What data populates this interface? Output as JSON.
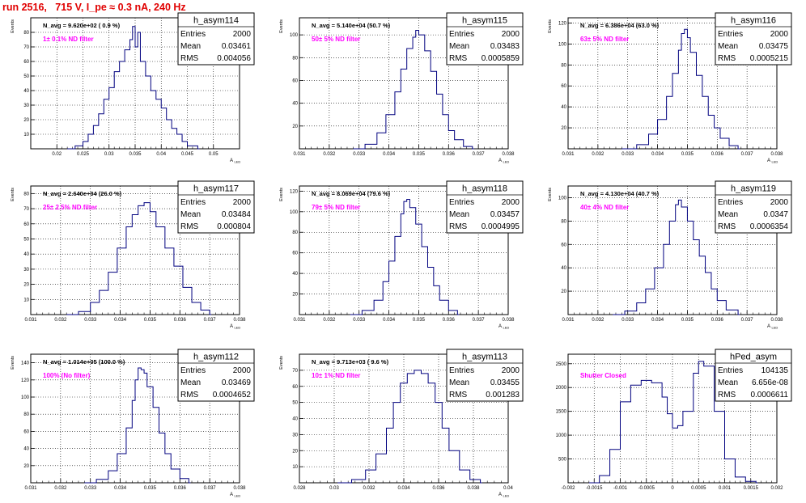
{
  "page_title": "run 2516,   715 V, I_pe ≈ 0.3 nA, 240 Hz",
  "colors": {
    "histogram_line": "#00007f",
    "filter_label": "#ff00ff",
    "title": "#e00000"
  },
  "chart_data": [
    {
      "type": "histogram",
      "name": "h_asym114",
      "stats": {
        "Entries": "2000",
        "Mean": "0.03461",
        "RMS": "0.004056"
      },
      "navg": "N_avg = 9.620e+02 ( 0.9 %)",
      "filter": "1± 0.1% ND filter",
      "ylabel": "Events",
      "xlabel": "A",
      "x_sub": "LED",
      "xlim": [
        0.015,
        0.055
      ],
      "ylim": [
        0,
        90
      ],
      "xticks": [
        0.02,
        0.025,
        0.03,
        0.035,
        0.04,
        0.045,
        0.05
      ],
      "xtick_labels": [
        "0.02",
        "0.025",
        "0.03",
        "0.035",
        "0.04",
        "0.045",
        "0.05"
      ],
      "yticks": [
        10,
        20,
        30,
        40,
        50,
        60,
        70,
        80
      ],
      "ytick_labels": [
        "10",
        "20",
        "30",
        "40",
        "50",
        "60",
        "70",
        "80"
      ],
      "x": [
        0.022,
        0.0235,
        0.025,
        0.026,
        0.027,
        0.028,
        0.029,
        0.03,
        0.031,
        0.032,
        0.033,
        0.034,
        0.0345,
        0.035,
        0.0355,
        0.036,
        0.037,
        0.038,
        0.039,
        0.04,
        0.041,
        0.042,
        0.043,
        0.044,
        0.045,
        0.047
      ],
      "y": [
        0,
        2,
        5,
        10,
        16,
        24,
        34,
        42,
        53,
        60,
        68,
        75,
        84,
        70,
        80,
        60,
        50,
        40,
        34,
        28,
        20,
        14,
        10,
        5,
        2,
        0
      ]
    },
    {
      "type": "histogram",
      "name": "h_asym115",
      "stats": {
        "Entries": "2000",
        "Mean": "0.03483",
        "RMS": "0.0005859"
      },
      "navg": "N_avg = 5.140e+04 (50.7 %)",
      "filter": "50± 5% ND filter",
      "ylabel": "Events",
      "xlabel": "A",
      "x_sub": "LED",
      "xlim": [
        0.031,
        0.038
      ],
      "ylim": [
        0,
        115
      ],
      "xticks": [
        0.031,
        0.032,
        0.033,
        0.034,
        0.035,
        0.036,
        0.037,
        0.038
      ],
      "xtick_labels": [
        "0.031",
        "0.032",
        "0.033",
        "0.034",
        "0.035",
        "0.036",
        "0.037",
        "0.038"
      ],
      "yticks": [
        20,
        40,
        60,
        80,
        100
      ],
      "ytick_labels": [
        "20",
        "40",
        "60",
        "80",
        "100"
      ],
      "x": [
        0.0328,
        0.0332,
        0.0336,
        0.0339,
        0.0342,
        0.0344,
        0.0346,
        0.0348,
        0.0349,
        0.035,
        0.0352,
        0.0354,
        0.0356,
        0.0358,
        0.036,
        0.0362,
        0.0365,
        0.0368
      ],
      "y": [
        0,
        4,
        14,
        30,
        50,
        70,
        88,
        98,
        104,
        100,
        86,
        68,
        48,
        30,
        16,
        8,
        2,
        0
      ]
    },
    {
      "type": "histogram",
      "name": "h_asym116",
      "stats": {
        "Entries": "2000",
        "Mean": "0.03475",
        "RMS": "0.0005215"
      },
      "navg": "N_avg = 6.386e+04 (63.0 %)",
      "filter": "63± 5% ND filter",
      "ylabel": "Events",
      "xlabel": "A",
      "x_sub": "LED",
      "xlim": [
        0.031,
        0.038
      ],
      "ylim": [
        0,
        125
      ],
      "xticks": [
        0.031,
        0.032,
        0.033,
        0.034,
        0.035,
        0.036,
        0.037,
        0.038
      ],
      "xtick_labels": [
        "0.031",
        "0.032",
        "0.033",
        "0.034",
        "0.035",
        "0.036",
        "0.037",
        "0.038"
      ],
      "yticks": [
        20,
        40,
        60,
        80,
        100,
        120
      ],
      "ytick_labels": [
        "20",
        "40",
        "60",
        "80",
        "100",
        "120"
      ],
      "x": [
        0.0328,
        0.0333,
        0.0337,
        0.034,
        0.0343,
        0.0345,
        0.0347,
        0.0348,
        0.0349,
        0.035,
        0.0351,
        0.0353,
        0.0355,
        0.0357,
        0.0359,
        0.0361,
        0.0364,
        0.0367
      ],
      "y": [
        0,
        4,
        14,
        28,
        50,
        72,
        94,
        110,
        114,
        106,
        92,
        70,
        50,
        32,
        20,
        10,
        3,
        0
      ]
    },
    {
      "type": "histogram",
      "name": "h_asym117",
      "stats": {
        "Entries": "2000",
        "Mean": "0.03484",
        "RMS": "0.000804"
      },
      "navg": "N_avg = 2.640e+04 (26.0 %)",
      "filter": "25± 2.5% ND filter",
      "ylabel": "Events",
      "xlabel": "A",
      "x_sub": "LED",
      "xlim": [
        0.031,
        0.038
      ],
      "ylim": [
        0,
        85
      ],
      "xticks": [
        0.031,
        0.032,
        0.033,
        0.034,
        0.035,
        0.036,
        0.037,
        0.038
      ],
      "xtick_labels": [
        "0.031",
        "0.032",
        "0.033",
        "0.034",
        "0.035",
        "0.036",
        "0.037",
        "0.038"
      ],
      "yticks": [
        10,
        20,
        30,
        40,
        50,
        60,
        70,
        80
      ],
      "ytick_labels": [
        "10",
        "20",
        "30",
        "40",
        "50",
        "60",
        "70",
        "80"
      ],
      "x": [
        0.0322,
        0.0326,
        0.033,
        0.0333,
        0.0336,
        0.0339,
        0.0342,
        0.0344,
        0.0346,
        0.0348,
        0.035,
        0.0352,
        0.0355,
        0.0358,
        0.0361,
        0.0364,
        0.0367,
        0.037
      ],
      "y": [
        0,
        2,
        8,
        16,
        28,
        44,
        58,
        66,
        72,
        74,
        68,
        58,
        44,
        32,
        18,
        8,
        3,
        0
      ]
    },
    {
      "type": "histogram",
      "name": "h_asym118",
      "stats": {
        "Entries": "2000",
        "Mean": "0.03457",
        "RMS": "0.0004995"
      },
      "navg": "N_avg = 8.069e+04 (79.6 %)",
      "filter": "79± 5% ND filter",
      "ylabel": "Events",
      "xlabel": "A",
      "x_sub": "LED",
      "xlim": [
        0.031,
        0.038
      ],
      "ylim": [
        0,
        125
      ],
      "xticks": [
        0.031,
        0.032,
        0.033,
        0.034,
        0.035,
        0.036,
        0.037,
        0.038
      ],
      "xtick_labels": [
        "0.031",
        "0.032",
        "0.033",
        "0.034",
        "0.035",
        "0.036",
        "0.037",
        "0.038"
      ],
      "yticks": [
        20,
        40,
        60,
        80,
        100,
        120
      ],
      "ytick_labels": [
        "20",
        "40",
        "60",
        "80",
        "100",
        "120"
      ],
      "x": [
        0.0327,
        0.0331,
        0.0335,
        0.0338,
        0.034,
        0.0342,
        0.0344,
        0.0345,
        0.0346,
        0.0347,
        0.0349,
        0.0351,
        0.0353,
        0.0355,
        0.0357,
        0.036,
        0.0363
      ],
      "y": [
        0,
        4,
        14,
        32,
        52,
        76,
        98,
        110,
        112,
        104,
        88,
        66,
        46,
        28,
        14,
        4,
        0
      ]
    },
    {
      "type": "histogram",
      "name": "h_asym119",
      "stats": {
        "Entries": "2000",
        "Mean": "0.0347",
        "RMS": "0.0006354"
      },
      "navg": "N_avg = 4.130e+04 (40.7 %)",
      "filter": "40± 4% ND filter",
      "ylabel": "Events",
      "xlabel": "A",
      "x_sub": "LED",
      "xlim": [
        0.031,
        0.038
      ],
      "ylim": [
        0,
        110
      ],
      "xticks": [
        0.031,
        0.032,
        0.033,
        0.034,
        0.035,
        0.036,
        0.037,
        0.038
      ],
      "xtick_labels": [
        "0.031",
        "0.032",
        "0.033",
        "0.034",
        "0.035",
        "0.036",
        "0.037",
        "0.038"
      ],
      "yticks": [
        20,
        40,
        60,
        80,
        100
      ],
      "ytick_labels": [
        "20",
        "40",
        "60",
        "80",
        "100"
      ],
      "x": [
        0.0325,
        0.0329,
        0.0333,
        0.0336,
        0.0339,
        0.0342,
        0.0344,
        0.0346,
        0.0347,
        0.0348,
        0.035,
        0.0352,
        0.0354,
        0.0356,
        0.0358,
        0.036,
        0.0363,
        0.0367
      ],
      "y": [
        0,
        3,
        10,
        22,
        40,
        60,
        80,
        94,
        98,
        92,
        80,
        64,
        50,
        36,
        22,
        12,
        4,
        0
      ]
    },
    {
      "type": "histogram",
      "name": "h_asym112",
      "stats": {
        "Entries": "2000",
        "Mean": "0.03469",
        "RMS": "0.0004652"
      },
      "navg": "N_avg = 1.014e+05 (100.0 %)",
      "filter": "100% (No filter)",
      "ylabel": "Events",
      "xlabel": "A",
      "x_sub": "LED",
      "xlim": [
        0.031,
        0.038
      ],
      "ylim": [
        0,
        150
      ],
      "xticks": [
        0.031,
        0.032,
        0.033,
        0.034,
        0.035,
        0.036,
        0.037,
        0.038
      ],
      "xtick_labels": [
        "0.031",
        "0.032",
        "0.033",
        "0.034",
        "0.035",
        "0.036",
        "0.037",
        "0.038"
      ],
      "yticks": [
        20,
        40,
        60,
        80,
        100,
        120,
        140
      ],
      "ytick_labels": [
        "20",
        "40",
        "60",
        "80",
        "100",
        "120",
        "140"
      ],
      "x": [
        0.0328,
        0.0332,
        0.0336,
        0.0339,
        0.0342,
        0.0344,
        0.0345,
        0.0346,
        0.0347,
        0.0348,
        0.0349,
        0.0351,
        0.0353,
        0.0355,
        0.0357,
        0.036,
        0.0363
      ],
      "y": [
        0,
        4,
        14,
        34,
        64,
        96,
        120,
        134,
        132,
        128,
        112,
        88,
        58,
        34,
        16,
        5,
        0
      ]
    },
    {
      "type": "histogram",
      "name": "h_asym113",
      "stats": {
        "Entries": "2000",
        "Mean": "0.03455",
        "RMS": "0.001283"
      },
      "navg": "N_avg = 9.713e+03 ( 9.6 %)",
      "filter": "10± 1% ND filter",
      "ylabel": "Events",
      "xlabel": "A",
      "x_sub": "LED",
      "xlim": [
        0.028,
        0.04
      ],
      "ylim": [
        0,
        80
      ],
      "xticks": [
        0.028,
        0.03,
        0.032,
        0.034,
        0.036,
        0.038,
        0.04
      ],
      "xtick_labels": [
        "0.028",
        "0.03",
        "0.032",
        "0.034",
        "0.036",
        "0.038",
        "0.04"
      ],
      "yticks": [
        10,
        20,
        30,
        40,
        50,
        60,
        70
      ],
      "ytick_labels": [
        "10",
        "20",
        "30",
        "40",
        "50",
        "60",
        "70"
      ],
      "x": [
        0.0302,
        0.031,
        0.0318,
        0.0324,
        0.033,
        0.0334,
        0.0338,
        0.0342,
        0.0346,
        0.035,
        0.0354,
        0.0358,
        0.0362,
        0.0366,
        0.0372,
        0.0378,
        0.0384
      ],
      "y": [
        0,
        2,
        8,
        18,
        34,
        50,
        62,
        68,
        70,
        68,
        62,
        50,
        34,
        20,
        8,
        2,
        0
      ]
    },
    {
      "type": "histogram",
      "name": "hPed_asym",
      "stats": {
        "Entries": "104135",
        "Mean": "6.656e-08",
        "RMS": "0.0006611"
      },
      "navg": "",
      "filter": "Shutter Closed",
      "ylabel": "",
      "xlabel": "",
      "x_sub": "",
      "xlim": [
        -0.002,
        0.002
      ],
      "ylim": [
        0,
        2700
      ],
      "xticks": [
        -0.002,
        -0.0015,
        -0.001,
        -0.0005,
        0,
        0.0005,
        0.001,
        0.0015,
        0.002
      ],
      "xtick_labels": [
        "-0.002",
        "-0.0015",
        "-0.001",
        "-0.0005",
        "0",
        "0.0005",
        "0.001",
        "0.0015",
        "0.002"
      ],
      "yticks": [
        500,
        1000,
        1500,
        2000,
        2500
      ],
      "ytick_labels": [
        "500",
        "1000",
        "1500",
        "2000",
        "2500"
      ],
      "x": [
        -0.0016,
        -0.0014,
        -0.0012,
        -0.001,
        -0.0008,
        -0.0006,
        -0.0004,
        -0.0002,
        -0.0001,
        0,
        0.0001,
        0.0002,
        0.0004,
        0.0005,
        0.0006,
        0.0008,
        0.001,
        0.0012,
        0.0014,
        0.0016
      ],
      "y": [
        0,
        150,
        700,
        1700,
        2050,
        2150,
        2100,
        1800,
        1450,
        1150,
        1200,
        1500,
        2300,
        2550,
        2450,
        1500,
        500,
        120,
        30,
        0
      ]
    }
  ]
}
